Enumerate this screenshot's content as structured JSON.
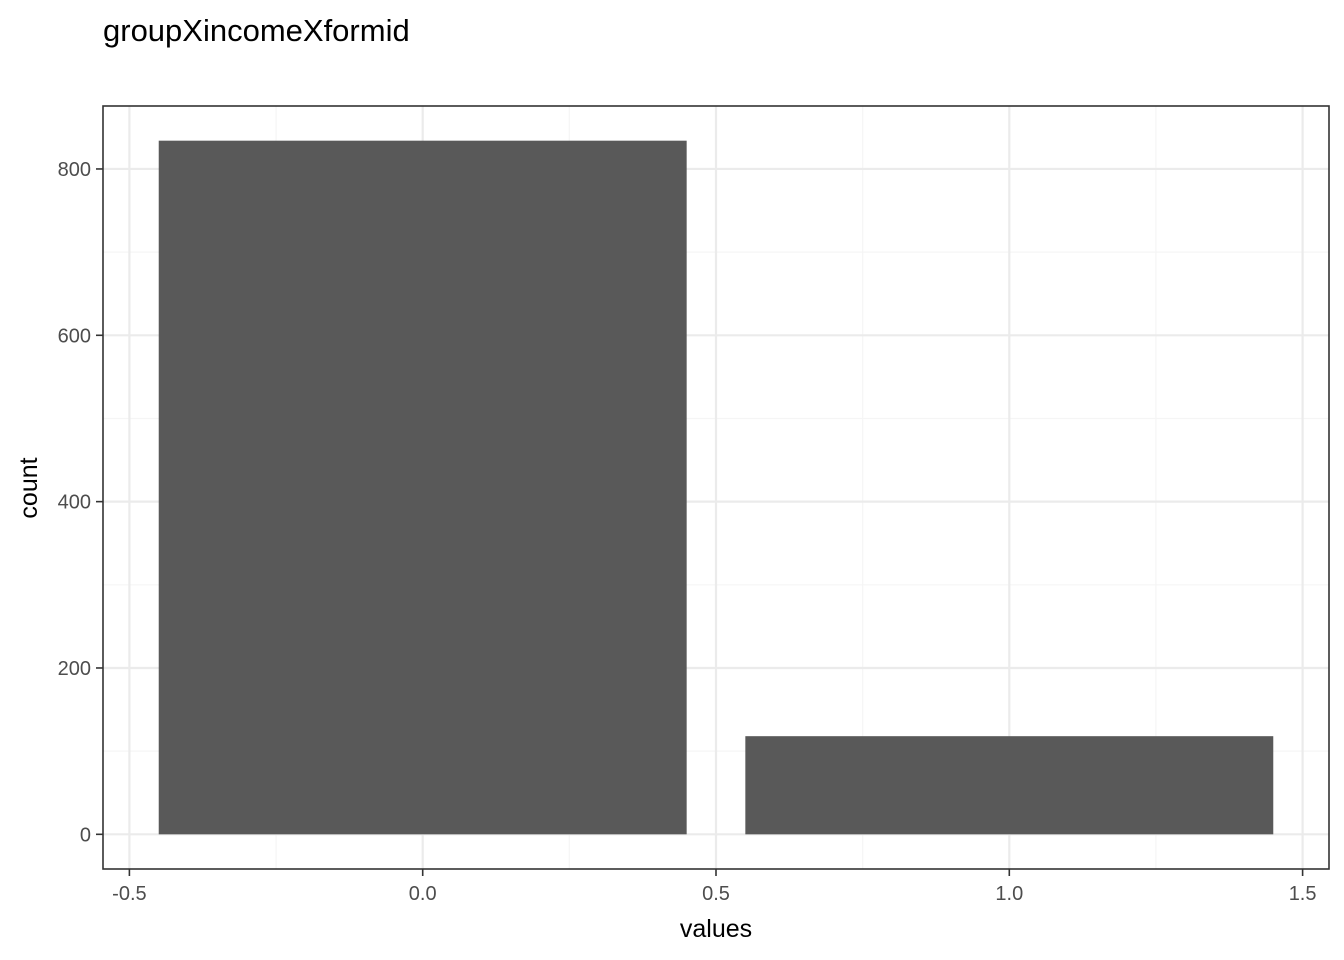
{
  "chart_data": {
    "type": "bar",
    "title": "groupXincomeXformid",
    "xlabel": "values",
    "ylabel": "count",
    "bars": [
      {
        "x": 0,
        "width": 0.9,
        "value": 834
      },
      {
        "x": 1,
        "width": 0.9,
        "value": 118
      }
    ],
    "xlim": [
      -0.545,
      1.545
    ],
    "ylim": [
      -41.7,
      875.7
    ],
    "x_ticks": [
      -0.5,
      0.0,
      0.5,
      1.0,
      1.5
    ],
    "x_tick_labels": [
      "-0.5",
      "0.0",
      "0.5",
      "1.0",
      "1.5"
    ],
    "y_ticks": [
      0,
      200,
      400,
      600,
      800
    ],
    "y_tick_labels": [
      "0",
      "200",
      "400",
      "600",
      "800"
    ],
    "x_minor_ticks": [
      -0.25,
      0.25,
      0.75,
      1.25
    ],
    "y_minor_ticks": [
      100,
      300,
      500,
      700
    ],
    "grid": true,
    "legend": "none",
    "colors": {
      "bar": "#595959",
      "grid_major": "#ebebeb",
      "grid_minor": "#f5f5f5",
      "panel_border": "#333333",
      "tick_text": "#4d4d4d",
      "title_text": "#000000"
    }
  }
}
